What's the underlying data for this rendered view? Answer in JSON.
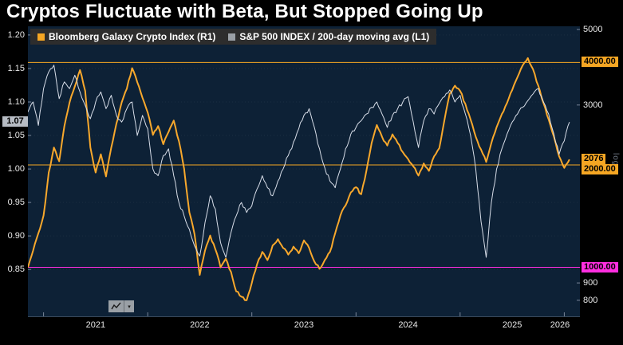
{
  "title": "Cryptos Fluctuate with Beta, But Stopped Going Up",
  "legend": {
    "items": [
      {
        "label": "Bloomberg Galaxy Crypto Index (R1)",
        "color": "#f5a623"
      },
      {
        "label": "S&P 500 INDEX / 200-day moving avg (L1)",
        "color": "#9aa0a6"
      }
    ]
  },
  "colors": {
    "background": "#000000",
    "plot_background": "#0d2136",
    "accent_orange": "#f5a623",
    "accent_magenta": "#ff2ee0",
    "series_white": "#d7dde8",
    "badge_gray": "#b7bcc4"
  },
  "icons": {
    "chart_type": "line-chart-icon",
    "dropdown": "chevron-down-icon"
  },
  "right_axis_scale_label": "log",
  "chart_data": {
    "type": "line",
    "title": "Cryptos Fluctuate with Beta, But Stopped Going Up",
    "x_unit": "year",
    "x_start": 2020.85,
    "x_step": 0.05,
    "x_range": [
      2020.85,
      2026.15
    ],
    "x_ticks": [
      2021,
      2022,
      2023,
      2024,
      2025,
      2026
    ],
    "x_tick_labels": [
      "2021",
      "2022",
      "2023",
      "2024",
      "2025",
      "2026"
    ],
    "left_axis": {
      "label": "S&P 500 INDEX / 200-day moving avg (L1)",
      "scale": "linear",
      "range": [
        0.78,
        1.213
      ],
      "ticks": [
        1.2,
        1.15,
        1.1,
        1.05,
        1.0,
        0.95,
        0.9,
        0.85
      ],
      "tick_labels": [
        "1.20",
        "1.15",
        "1.10",
        "1.05",
        "1.00",
        "0.95",
        "0.90",
        "0.85"
      ],
      "last_value": 1.07,
      "last_value_label": "1.07"
    },
    "right_axis": {
      "label": "Bloomberg Galaxy Crypto Index (R1)",
      "scale": "log",
      "range": [
        718,
        5109
      ],
      "plain_ticks": [
        5000,
        3000,
        900,
        800
      ],
      "plain_tick_labels": [
        "5000",
        "3000",
        "900",
        "800"
      ],
      "last_value": 2076,
      "last_value_label": "2076"
    },
    "reference_lines": [
      {
        "axis": "right",
        "value": 4000,
        "label": "4000.00",
        "color": "#f5a623"
      },
      {
        "axis": "right",
        "value": 2000,
        "label": "2000.00",
        "color": "#f5a623"
      },
      {
        "axis": "right",
        "value": 1000,
        "label": "1000.00",
        "color": "#ff2ee0"
      }
    ],
    "series": [
      {
        "name": "Bloomberg Galaxy Crypto Index (R1)",
        "axis": "right",
        "color": "#f8a82c",
        "width": 2,
        "values": [
          1000,
          1120,
          1260,
          1420,
          1900,
          2250,
          2050,
          2600,
          3050,
          3400,
          3800,
          3300,
          2250,
          1900,
          2150,
          1850,
          2250,
          2650,
          3050,
          3350,
          3850,
          3500,
          3150,
          2850,
          2450,
          2600,
          2300,
          2500,
          2700,
          2350,
          1950,
          1450,
          1250,
          950,
          1120,
          1240,
          1130,
          1000,
          1060,
          970,
          850,
          820,
          800,
          900,
          1020,
          1110,
          1050,
          1160,
          1210,
          1140,
          1090,
          1150,
          1100,
          1200,
          1140,
          1040,
          990,
          1050,
          1110,
          1260,
          1420,
          1520,
          1660,
          1720,
          1640,
          1920,
          2320,
          2620,
          2420,
          2280,
          2460,
          2320,
          2180,
          2080,
          1980,
          1860,
          2020,
          1920,
          2120,
          2240,
          2720,
          3240,
          3420,
          3300,
          3020,
          2720,
          2420,
          2220,
          2040,
          2320,
          2580,
          2820,
          3040,
          3320,
          3620,
          3920,
          4120,
          3820,
          3420,
          3040,
          2720,
          2420,
          2120,
          1960,
          2076
        ]
      },
      {
        "name": "S&P 500 INDEX / 200-day moving avg (L1)",
        "axis": "left",
        "color": "#d7dde8",
        "width": 1,
        "values": [
          1.085,
          1.1,
          1.065,
          1.12,
          1.145,
          1.155,
          1.105,
          1.13,
          1.12,
          1.14,
          1.115,
          1.095,
          1.075,
          1.1,
          1.115,
          1.09,
          1.11,
          1.08,
          1.07,
          1.09,
          1.1,
          1.05,
          1.08,
          1.06,
          1.0,
          0.99,
          1.02,
          1.03,
          0.99,
          0.95,
          0.93,
          0.91,
          0.885,
          0.87,
          0.92,
          0.96,
          0.94,
          0.89,
          0.868,
          0.905,
          0.93,
          0.95,
          0.935,
          0.945,
          0.97,
          0.99,
          0.972,
          0.96,
          0.982,
          1.0,
          1.02,
          1.04,
          1.06,
          1.08,
          1.09,
          1.062,
          1.03,
          1.002,
          0.982,
          0.972,
          1.0,
          1.03,
          1.052,
          1.062,
          1.072,
          1.082,
          1.092,
          1.1,
          1.082,
          1.062,
          1.08,
          1.09,
          1.1,
          1.108,
          1.07,
          1.032,
          1.072,
          1.09,
          1.082,
          1.098,
          1.108,
          1.118,
          1.1,
          1.11,
          1.082,
          1.05,
          1.0,
          0.922,
          0.868,
          0.95,
          1.0,
          1.03,
          1.052,
          1.07,
          1.082,
          1.092,
          1.102,
          1.112,
          1.12,
          1.1,
          1.082,
          1.052,
          1.022,
          1.042,
          1.07
        ]
      }
    ],
    "legend_position": "top-left",
    "grid": "subtle-dotted-horizontal"
  }
}
